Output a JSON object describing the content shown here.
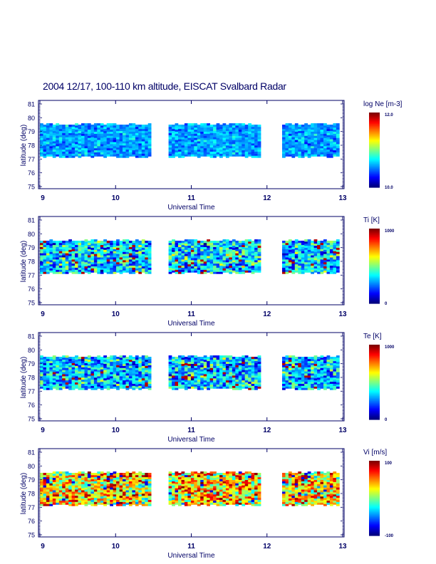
{
  "title": "2004 12/17, 100-110 km altitude, EISCAT Svalbard Radar",
  "chart_data": [
    {
      "type": "heatmap",
      "title": "log Ne [m-3]",
      "title_main": "log Ne [m",
      "title_sup": "-3",
      "title_end": "]",
      "xlabel": "Universal Time",
      "ylabel": "latitude (deg)",
      "xlim": [
        9,
        13
      ],
      "ylim": [
        75,
        81
      ],
      "xticks": [
        "9",
        "10",
        "11",
        "12",
        "13"
      ],
      "yticks": [
        "75",
        "76",
        "77",
        "78",
        "79",
        "80",
        "81"
      ],
      "colorbar": {
        "min_label": "10.0",
        "max_label": "12.0",
        "range": [
          10.0,
          12.0
        ],
        "colormap": "jet"
      },
      "data_time_segments": [
        [
          9.0,
          10.45
        ],
        [
          10.7,
          11.88
        ],
        [
          12.2,
          12.95
        ]
      ],
      "data_lat_range": [
        77.1,
        79.5
      ],
      "typical_value_fraction": 0.28,
      "value_spread": 0.12
    },
    {
      "type": "heatmap",
      "title": "Ti [K]",
      "title_main": "Ti [K]",
      "xlabel": "Universal Time",
      "ylabel": "latitude (deg)",
      "xlim": [
        9,
        13
      ],
      "ylim": [
        75,
        81
      ],
      "xticks": [
        "9",
        "10",
        "11",
        "12",
        "13"
      ],
      "yticks": [
        "75",
        "76",
        "77",
        "78",
        "79",
        "80",
        "81"
      ],
      "colorbar": {
        "min_label": "0",
        "max_label": "1000",
        "range": [
          0,
          1000
        ],
        "colormap": "jet"
      },
      "data_time_segments": [
        [
          9.0,
          10.45
        ],
        [
          10.7,
          11.88
        ],
        [
          12.2,
          12.95
        ]
      ],
      "data_lat_range": [
        77.1,
        79.5
      ],
      "typical_value_fraction": 0.35,
      "value_spread": 0.25
    },
    {
      "type": "heatmap",
      "title": "Te [K]",
      "title_main": "Te [K]",
      "xlabel": "Universal Time",
      "ylabel": "latitude (deg)",
      "xlim": [
        9,
        13
      ],
      "ylim": [
        75,
        81
      ],
      "xticks": [
        "9",
        "10",
        "11",
        "12",
        "13"
      ],
      "yticks": [
        "75",
        "76",
        "77",
        "78",
        "79",
        "80",
        "81"
      ],
      "colorbar": {
        "min_label": "0",
        "max_label": "1000",
        "range": [
          0,
          1000
        ],
        "colormap": "jet"
      },
      "data_time_segments": [
        [
          9.0,
          10.45
        ],
        [
          10.7,
          11.88
        ],
        [
          12.2,
          12.95
        ]
      ],
      "data_lat_range": [
        77.1,
        79.5
      ],
      "typical_value_fraction": 0.33,
      "value_spread": 0.25
    },
    {
      "type": "heatmap",
      "title": "Vi [m/s]",
      "title_main": "Vi [m/s]",
      "xlabel": "Universal Time",
      "ylabel": "latitude (deg)",
      "xlim": [
        9,
        13
      ],
      "ylim": [
        75,
        81
      ],
      "xticks": [
        "9",
        "10",
        "11",
        "12",
        "13"
      ],
      "yticks": [
        "75",
        "76",
        "77",
        "78",
        "79",
        "80",
        "81"
      ],
      "colorbar": {
        "min_label": "-100",
        "max_label": "100",
        "range": [
          -100,
          100
        ],
        "colormap": "jet"
      },
      "data_time_segments": [
        [
          9.0,
          10.45
        ],
        [
          10.7,
          11.88
        ],
        [
          12.2,
          12.95
        ]
      ],
      "data_lat_range": [
        77.1,
        79.5
      ],
      "typical_value_fraction": 0.65,
      "value_spread": 0.35
    }
  ]
}
